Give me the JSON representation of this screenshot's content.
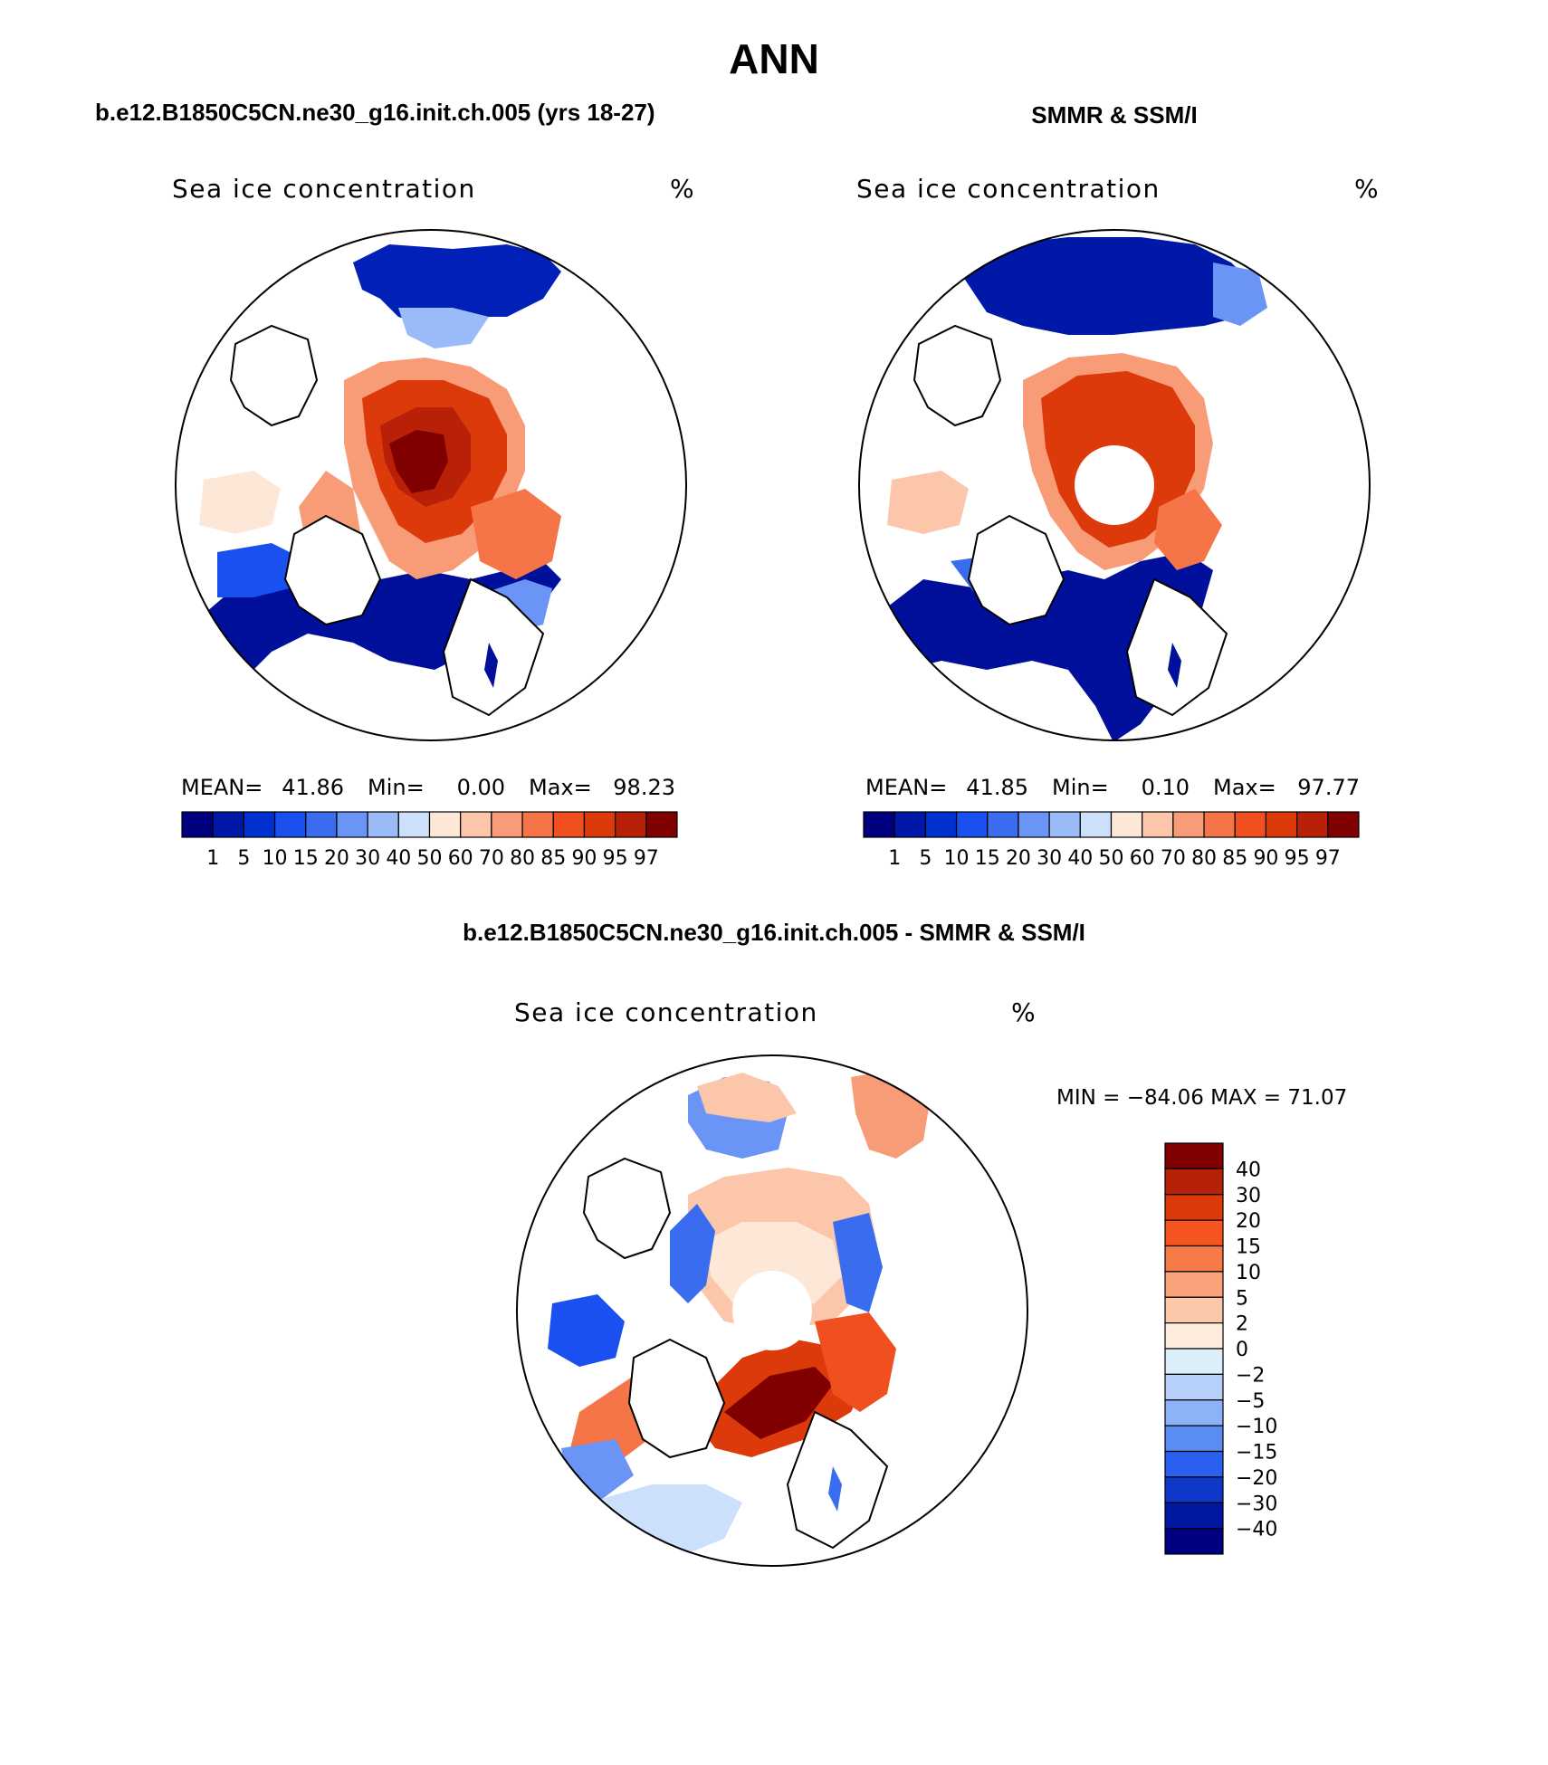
{
  "title": "ANN",
  "panels": [
    {
      "heading": "b.e12.B1850C5CN.ne30_g16.init.ch.005 (yrs 18-27)",
      "field": "Sea ice concentration",
      "units": "%",
      "stats": {
        "mean_label": "MEAN=",
        "mean": "41.86",
        "min_label": "Min=",
        "min": "0.00",
        "max_label": "Max=",
        "max": "98.23"
      },
      "pole_hole": false
    },
    {
      "heading": "SMMR & SSM/I",
      "field": "Sea ice concentration",
      "units": "%",
      "stats": {
        "mean_label": "MEAN=",
        "mean": "41.85",
        "min_label": "Min=",
        "min": "0.10",
        "max_label": "Max=",
        "max": "97.77"
      },
      "pole_hole": true
    }
  ],
  "colorbar": {
    "labels": [
      "1",
      "5",
      "10",
      "15",
      "20",
      "30",
      "40",
      "50",
      "60",
      "70",
      "80",
      "85",
      "90",
      "95",
      "97"
    ],
    "colors": [
      "#00007f",
      "#0018a8",
      "#0030d0",
      "#1a4ff0",
      "#3a6cf0",
      "#6a94f5",
      "#9bbaf8",
      "#cce0fb",
      "#fde8d8",
      "#fbc6aa",
      "#f89c78",
      "#f57448",
      "#f05020",
      "#dc3a0a",
      "#b82008",
      "#800000"
    ]
  },
  "diff": {
    "heading": "b.e12.B1850C5CN.ne30_g16.init.ch.005 - SMMR & SSM/I",
    "field": "Sea ice concentration",
    "units": "%",
    "minmax": "MIN = −84.06 MAX =   71.07",
    "labels": [
      "40",
      "30",
      "20",
      "15",
      "10",
      "5",
      "2",
      "0",
      "−2",
      "−5",
      "−10",
      "−15",
      "−20",
      "−30",
      "−40"
    ],
    "colors": [
      "#800000",
      "#b52208",
      "#dc3a0a",
      "#f55520",
      "#f57a48",
      "#f8a27a",
      "#fbc8aa",
      "#fdecdc",
      "#ddeefb",
      "#b6d0fb",
      "#8cb2f8",
      "#5a8cf2",
      "#2a60f0",
      "#1038c8",
      "#0018a0",
      "#000080"
    ]
  },
  "chart_data": {
    "type": "map",
    "title": "ANN",
    "maps": [
      {
        "name": "b.e12.B1850C5CN.ne30_g16.init.ch.005 (yrs 18-27)",
        "field": "Sea ice concentration",
        "units": "%",
        "mean": 41.86,
        "min": 0.0,
        "max": 98.23
      },
      {
        "name": "SMMR & SSM/I",
        "field": "Sea ice concentration",
        "units": "%",
        "mean": 41.85,
        "min": 0.1,
        "max": 97.77
      },
      {
        "name": "b.e12.B1850C5CN.ne30_g16.init.ch.005 - SMMR & SSM/I",
        "field": "Sea ice concentration",
        "units": "%",
        "min": -84.06,
        "max": 71.07
      }
    ],
    "concentration_levels": [
      1,
      5,
      10,
      15,
      20,
      30,
      40,
      50,
      60,
      70,
      80,
      85,
      90,
      95,
      97
    ],
    "difference_levels": [
      40,
      30,
      20,
      15,
      10,
      5,
      2,
      0,
      -2,
      -5,
      -10,
      -15,
      -20,
      -30,
      -40
    ]
  }
}
